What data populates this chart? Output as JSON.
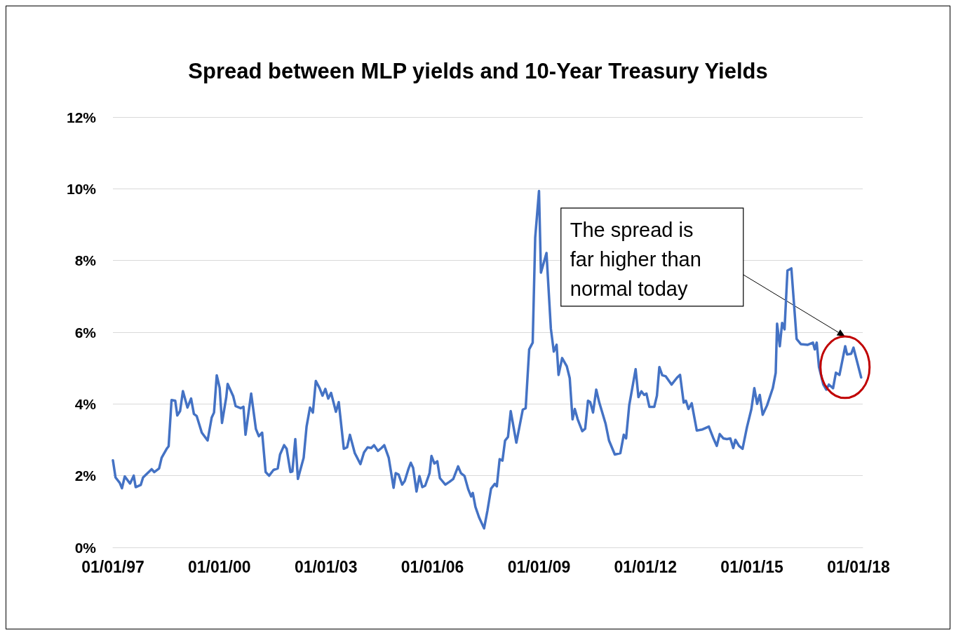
{
  "chart_data": {
    "type": "line",
    "title": "Spread between MLP yields and 10-Year Treasury Yields",
    "x": [
      "1997-01-01",
      "1997-01-28",
      "1997-03-12",
      "1997-04-04",
      "1997-05-03",
      "1997-06-26",
      "1997-08-03",
      "1997-08-23",
      "1997-10-14",
      "1997-11-07",
      "1998-02-03",
      "1998-03-02",
      "1998-04-21",
      "1998-05-17",
      "1998-07-08",
      "1998-07-28",
      "1998-08-27",
      "1998-10-04",
      "1998-10-25",
      "1998-11-23",
      "1998-12-22",
      "1999-02-07",
      "1999-03-16",
      "1999-04-14",
      "1999-05-13",
      "1999-07-04",
      "1999-09-02",
      "1999-10-14",
      "1999-11-07",
      "1999-12-05",
      "2000-01-04",
      "2000-01-28",
      "2000-03-12",
      "2000-03-26",
      "2000-05-23",
      "2000-06-16",
      "2000-08-07",
      "2000-09-05",
      "2000-09-26",
      "2000-11-23",
      "2001-01-11",
      "2001-02-10",
      "2001-03-16",
      "2001-04-21",
      "2001-05-27",
      "2001-07-11",
      "2001-08-23",
      "2001-09-16",
      "2001-10-28",
      "2001-11-23",
      "2002-01-01",
      "2002-01-21",
      "2002-02-20",
      "2002-03-19",
      "2002-05-17",
      "2002-06-16",
      "2002-07-21",
      "2002-08-20",
      "2002-09-19",
      "2002-10-28",
      "2002-11-27",
      "2002-12-26",
      "2003-01-25",
      "2003-02-23",
      "2003-04-14",
      "2003-05-13",
      "2003-07-04",
      "2003-08-07",
      "2003-09-05",
      "2003-10-25",
      "2003-12-22",
      "2004-01-28",
      "2004-03-05",
      "2004-04-11",
      "2004-05-10",
      "2004-06-19",
      "2004-07-25",
      "2004-08-23",
      "2004-10-08",
      "2004-11-27",
      "2004-12-19",
      "2005-01-18",
      "2005-02-23",
      "2005-03-22",
      "2005-04-28",
      "2005-05-23",
      "2005-06-16",
      "2005-07-21",
      "2005-08-20",
      "2005-09-19",
      "2005-10-18",
      "2005-12-02",
      "2005-12-22",
      "2006-01-21",
      "2006-02-20",
      "2006-03-19",
      "2006-05-13",
      "2006-06-26",
      "2006-08-03",
      "2006-09-22",
      "2006-10-21",
      "2006-11-27",
      "2007-01-04",
      "2007-02-03",
      "2007-02-20",
      "2007-03-19",
      "2007-04-25",
      "2007-06-16",
      "2007-07-21",
      "2007-08-27",
      "2007-10-04",
      "2007-10-25",
      "2007-11-23",
      "2007-12-22",
      "2008-01-18",
      "2008-02-17",
      "2008-03-16",
      "2008-05-13",
      "2008-07-18",
      "2008-08-17",
      "2008-09-22",
      "2008-10-28",
      "2008-11-23",
      "2009-01-01",
      "2009-01-21",
      "2009-03-19",
      "2009-05-03",
      "2009-06-02",
      "2009-07-01",
      "2009-07-21",
      "2009-08-27",
      "2009-10-14",
      "2009-11-13",
      "2009-12-12",
      "2010-01-04",
      "2010-02-03",
      "2010-03-22",
      "2010-04-21",
      "2010-05-20",
      "2010-06-12",
      "2010-07-11",
      "2010-08-13",
      "2010-09-12",
      "2010-11-17",
      "2010-12-22",
      "2011-02-20",
      "2011-04-18",
      "2011-05-23",
      "2011-06-16",
      "2011-07-18",
      "2011-09-22",
      "2011-10-21",
      "2011-11-20",
      "2011-12-19",
      "2012-01-11",
      "2012-02-10",
      "2012-04-01",
      "2012-04-28",
      "2012-05-23",
      "2012-06-22",
      "2012-07-28",
      "2012-09-26",
      "2012-11-23",
      "2012-12-22",
      "2013-01-28",
      "2013-02-20",
      "2013-03-19",
      "2013-04-21",
      "2013-06-12",
      "2013-08-10",
      "2013-10-14",
      "2013-11-27",
      "2014-01-04",
      "2014-02-03",
      "2014-03-12",
      "2014-04-18",
      "2014-05-23",
      "2014-06-22",
      "2014-07-14",
      "2014-08-20",
      "2014-09-26",
      "2014-11-10",
      "2014-12-26",
      "2015-01-25",
      "2015-02-23",
      "2015-03-22",
      "2015-04-21",
      "2015-06-05",
      "2015-08-03",
      "2015-09-02",
      "2015-09-16",
      "2015-10-14",
      "2015-11-07",
      "2015-12-02",
      "2016-01-01",
      "2016-02-10",
      "2016-04-04",
      "2016-05-17",
      "2016-07-28",
      "2016-09-19",
      "2016-10-08",
      "2016-10-28",
      "2016-11-20",
      "2017-01-04",
      "2017-02-03",
      "2017-03-02",
      "2017-04-14",
      "2017-05-13",
      "2017-06-19",
      "2017-08-17",
      "2017-09-05",
      "2017-10-18",
      "2017-11-10",
      "2018-01-28"
    ],
    "series": [
      {
        "color": "#4472c4",
        "values": [
          2.43,
          1.95,
          1.8,
          1.65,
          1.98,
          1.78,
          2.0,
          1.68,
          1.74,
          1.95,
          2.18,
          2.1,
          2.2,
          2.5,
          2.75,
          2.82,
          4.11,
          4.09,
          3.68,
          3.8,
          4.36,
          3.9,
          4.15,
          3.72,
          3.66,
          3.2,
          2.98,
          3.62,
          3.76,
          4.8,
          4.45,
          3.47,
          4.19,
          4.56,
          4.21,
          3.94,
          3.88,
          3.92,
          3.14,
          4.29,
          3.3,
          3.1,
          3.2,
          2.1,
          2.0,
          2.16,
          2.2,
          2.59,
          2.85,
          2.75,
          2.1,
          2.12,
          3.02,
          1.91,
          2.5,
          3.37,
          3.9,
          3.76,
          4.64,
          4.44,
          4.23,
          4.42,
          4.15,
          4.31,
          3.78,
          4.05,
          2.75,
          2.79,
          3.14,
          2.63,
          2.32,
          2.65,
          2.79,
          2.77,
          2.85,
          2.69,
          2.77,
          2.85,
          2.5,
          1.66,
          2.07,
          2.03,
          1.75,
          1.85,
          2.18,
          2.36,
          2.22,
          1.56,
          1.99,
          1.68,
          1.72,
          2.07,
          2.55,
          2.34,
          2.4,
          1.93,
          1.75,
          1.83,
          1.91,
          2.26,
          2.07,
          1.99,
          1.62,
          1.42,
          1.52,
          1.13,
          0.84,
          0.53,
          1.03,
          1.64,
          1.77,
          1.7,
          2.46,
          2.42,
          2.98,
          3.08,
          3.8,
          2.92,
          3.84,
          3.88,
          5.52,
          5.71,
          8.64,
          9.94,
          7.66,
          8.21,
          6.1,
          5.46,
          5.65,
          4.81,
          5.28,
          5.05,
          4.72,
          3.57,
          3.86,
          3.57,
          3.24,
          3.31,
          4.09,
          4.05,
          3.76,
          4.4,
          4.05,
          3.45,
          2.98,
          2.59,
          2.63,
          3.14,
          3.04,
          3.96,
          4.97,
          4.19,
          4.35,
          4.25,
          4.29,
          3.92,
          3.92,
          4.23,
          5.03,
          4.8,
          4.77,
          4.54,
          4.74,
          4.81,
          4.04,
          4.09,
          3.86,
          4.02,
          3.26,
          3.29,
          3.37,
          3.06,
          2.83,
          3.16,
          3.04,
          3.02,
          3.04,
          2.77,
          3.0,
          2.83,
          2.75,
          3.35,
          3.86,
          4.44,
          4.0,
          4.25,
          3.7,
          3.96,
          4.44,
          4.87,
          6.24,
          5.61,
          6.26,
          6.08,
          7.72,
          7.78,
          5.81,
          5.67,
          5.65,
          5.71,
          5.52,
          5.71,
          5.03,
          4.54,
          4.4,
          4.54,
          4.44,
          4.87,
          4.81,
          5.61,
          5.38,
          5.4,
          5.57,
          4.74
        ]
      }
    ],
    "xlim": [
      "1997-01-01",
      "2018-02-13"
    ],
    "xticks": [
      {
        "value": "1997-01-01",
        "label": "01/01/97"
      },
      {
        "value": "2000-01-01",
        "label": "01/01/00"
      },
      {
        "value": "2003-01-01",
        "label": "01/01/03"
      },
      {
        "value": "2006-01-01",
        "label": "01/01/06"
      },
      {
        "value": "2009-01-01",
        "label": "01/01/09"
      },
      {
        "value": "2012-01-01",
        "label": "01/01/12"
      },
      {
        "value": "2015-01-01",
        "label": "01/01/15"
      },
      {
        "value": "2018-01-01",
        "label": "01/01/18"
      }
    ],
    "ylim": [
      0,
      12
    ],
    "yticks": [
      {
        "value": 0,
        "label": "0%"
      },
      {
        "value": 2,
        "label": "2%"
      },
      {
        "value": 4,
        "label": "4%"
      },
      {
        "value": 6,
        "label": "6%"
      },
      {
        "value": 8,
        "label": "8%"
      },
      {
        "value": 10,
        "label": "10%"
      },
      {
        "value": 12,
        "label": "12%"
      }
    ],
    "grid": "y",
    "marker": "none",
    "annotations": [
      "The spread is far higher than normal today"
    ]
  }
}
